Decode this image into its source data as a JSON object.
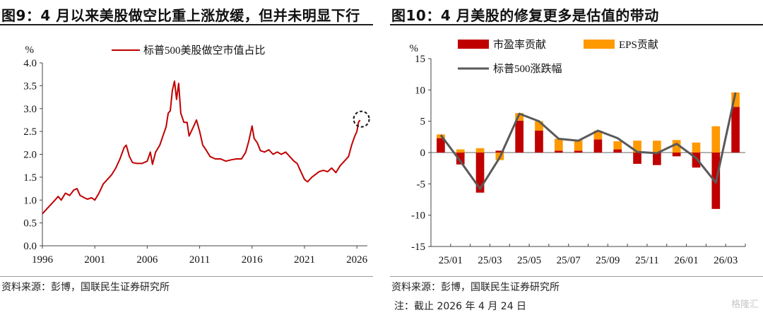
{
  "left": {
    "title": "图9：4 月以来美股做空比重上涨放缓，但并未明显下行",
    "source": "资料来源：彭博，国联民生证券研究所",
    "chart_data": {
      "type": "line",
      "ylabel": "%",
      "ylim": [
        0.0,
        4.0
      ],
      "yticks": [
        "4.0",
        "3.5",
        "3.0",
        "2.5",
        "2.0",
        "1.5",
        "1.0",
        "0.5",
        "0.0"
      ],
      "xlim": [
        1996,
        2027
      ],
      "xticks": [
        "1996",
        "2001",
        "2006",
        "2011",
        "2016",
        "2021",
        "2026"
      ],
      "legend": "标普500美股做空市值占比",
      "series": [
        {
          "name": "标普500美股做空市值占比",
          "color": "#c00000",
          "points": [
            [
              1996.0,
              0.7
            ],
            [
              1996.4,
              0.8
            ],
            [
              1996.8,
              0.9
            ],
            [
              1997.2,
              1.0
            ],
            [
              1997.5,
              1.08
            ],
            [
              1997.8,
              1.0
            ],
            [
              1998.2,
              1.15
            ],
            [
              1998.6,
              1.1
            ],
            [
              1999.0,
              1.22
            ],
            [
              1999.3,
              1.25
            ],
            [
              1999.6,
              1.1
            ],
            [
              2000.0,
              1.05
            ],
            [
              2000.3,
              1.02
            ],
            [
              2000.7,
              1.05
            ],
            [
              2001.0,
              1.0
            ],
            [
              2001.4,
              1.15
            ],
            [
              2001.8,
              1.35
            ],
            [
              2002.2,
              1.45
            ],
            [
              2002.6,
              1.55
            ],
            [
              2003.0,
              1.7
            ],
            [
              2003.4,
              1.9
            ],
            [
              2003.8,
              2.15
            ],
            [
              2004.0,
              2.2
            ],
            [
              2004.3,
              1.95
            ],
            [
              2004.6,
              1.82
            ],
            [
              2005.0,
              1.8
            ],
            [
              2005.5,
              1.8
            ],
            [
              2006.0,
              1.85
            ],
            [
              2006.3,
              2.05
            ],
            [
              2006.5,
              1.78
            ],
            [
              2006.8,
              2.05
            ],
            [
              2007.2,
              2.2
            ],
            [
              2007.5,
              2.4
            ],
            [
              2007.8,
              2.6
            ],
            [
              2008.0,
              2.9
            ],
            [
              2008.2,
              2.95
            ],
            [
              2008.4,
              3.4
            ],
            [
              2008.6,
              3.6
            ],
            [
              2008.8,
              3.2
            ],
            [
              2009.0,
              3.55
            ],
            [
              2009.2,
              2.9
            ],
            [
              2009.5,
              2.7
            ],
            [
              2009.8,
              2.7
            ],
            [
              2010.0,
              2.4
            ],
            [
              2010.4,
              2.6
            ],
            [
              2010.7,
              2.75
            ],
            [
              2011.0,
              2.5
            ],
            [
              2011.3,
              2.2
            ],
            [
              2011.6,
              2.1
            ],
            [
              2012.0,
              1.95
            ],
            [
              2012.5,
              1.9
            ],
            [
              2013.0,
              1.9
            ],
            [
              2013.5,
              1.85
            ],
            [
              2014.0,
              1.88
            ],
            [
              2014.5,
              1.9
            ],
            [
              2015.0,
              1.9
            ],
            [
              2015.4,
              2.05
            ],
            [
              2015.7,
              2.3
            ],
            [
              2016.0,
              2.62
            ],
            [
              2016.2,
              2.35
            ],
            [
              2016.5,
              2.25
            ],
            [
              2016.8,
              2.08
            ],
            [
              2017.2,
              2.05
            ],
            [
              2017.6,
              2.1
            ],
            [
              2018.0,
              2.0
            ],
            [
              2018.4,
              2.05
            ],
            [
              2018.8,
              2.0
            ],
            [
              2019.2,
              2.05
            ],
            [
              2019.6,
              1.95
            ],
            [
              2020.0,
              1.85
            ],
            [
              2020.3,
              1.8
            ],
            [
              2020.6,
              1.65
            ],
            [
              2021.0,
              1.45
            ],
            [
              2021.3,
              1.4
            ],
            [
              2021.7,
              1.5
            ],
            [
              2022.0,
              1.55
            ],
            [
              2022.4,
              1.62
            ],
            [
              2022.8,
              1.65
            ],
            [
              2023.2,
              1.62
            ],
            [
              2023.6,
              1.7
            ],
            [
              2024.0,
              1.6
            ],
            [
              2024.4,
              1.75
            ],
            [
              2024.8,
              1.85
            ],
            [
              2025.2,
              1.95
            ],
            [
              2025.5,
              2.2
            ],
            [
              2025.8,
              2.4
            ],
            [
              2026.0,
              2.5
            ],
            [
              2026.15,
              2.7
            ],
            [
              2026.3,
              2.75
            ]
          ]
        }
      ],
      "annotation": "dashed-circle"
    }
  },
  "right": {
    "title": "图10：4 月美股的修复更多是估值的带动",
    "source": "资料来源：彭博，国联民生证券研究所",
    "note": "注：截止 2026 年 4 月 24 日",
    "watermark": "格隆汇",
    "chart_data": {
      "type": "bar",
      "ylabel": "%",
      "ylim": [
        -15,
        15
      ],
      "yticks": [
        "15",
        "10",
        "5",
        "0",
        "-5",
        "-10",
        "-15"
      ],
      "categories": [
        "25/01",
        "25/02",
        "25/03",
        "25/04",
        "25/05",
        "25/06",
        "25/07",
        "25/08",
        "25/09",
        "25/10",
        "25/11",
        "25/12",
        "26/01",
        "26/02",
        "26/03",
        "26/04"
      ],
      "xtick_labels": [
        "25/01",
        "25/03",
        "25/05",
        "25/07",
        "25/09",
        "25/11",
        "26/01",
        "26/03"
      ],
      "series": [
        {
          "name": "市盈率贡献",
          "color": "#c00000",
          "values": [
            2.3,
            -1.9,
            -6.4,
            0.3,
            5.1,
            3.5,
            0.3,
            0.3,
            2.1,
            0.5,
            -1.8,
            -2.0,
            -0.6,
            -2.4,
            -9.0,
            7.3
          ]
        },
        {
          "name": "EPS贡献",
          "color": "#ff9900",
          "values": [
            0.6,
            0.5,
            0.7,
            -1.2,
            1.2,
            1.5,
            1.9,
            1.7,
            1.4,
            1.3,
            1.9,
            1.9,
            2.0,
            1.6,
            4.2,
            2.3
          ]
        },
        {
          "name": "标普500涨跌幅",
          "color": "#595959",
          "values": [
            2.8,
            -1.4,
            -5.8,
            -0.8,
            6.2,
            5.0,
            2.2,
            1.9,
            3.5,
            2.3,
            0.1,
            -0.1,
            1.4,
            -0.9,
            -4.8,
            9.6
          ]
        }
      ]
    }
  }
}
